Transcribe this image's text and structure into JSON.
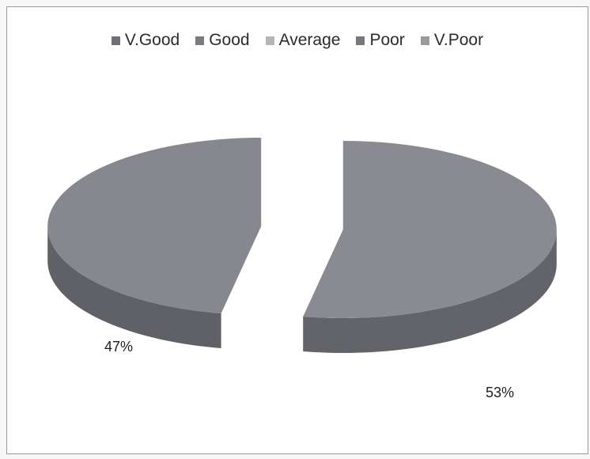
{
  "chart_data": {
    "type": "pie",
    "legend_position": "top",
    "legend": [
      {
        "label": "V.Good",
        "color": "#6f7078"
      },
      {
        "label": "Good",
        "color": "#7a7a80"
      },
      {
        "label": "Average",
        "color": "#b6b6b6"
      },
      {
        "label": "Poor",
        "color": "#77787f"
      },
      {
        "label": "V.Poor",
        "color": "#9a9a9a"
      }
    ],
    "slices": [
      {
        "label": "V.Good",
        "value": 47,
        "display": "47%",
        "color": "#86878f"
      },
      {
        "label": "Poor",
        "value": 53,
        "display": "53%",
        "color": "#8a8b92"
      }
    ],
    "style": "3d-exploded"
  }
}
